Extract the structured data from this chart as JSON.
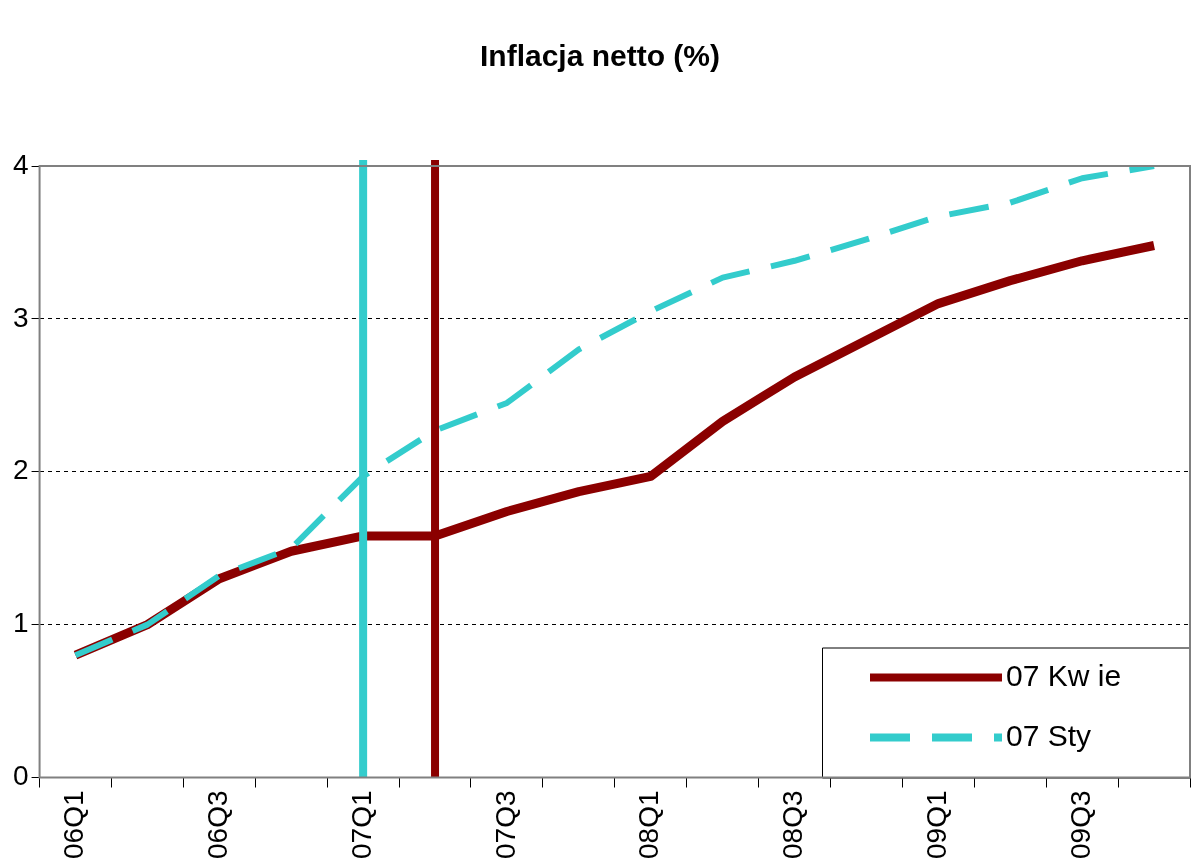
{
  "chart_data": {
    "type": "line",
    "title": "Inflacja netto (%)",
    "categories": [
      "06Q1",
      null,
      "06Q3",
      null,
      "07Q1",
      null,
      "07Q3",
      null,
      "08Q1",
      null,
      "08Q3",
      null,
      "09Q1",
      null,
      "09Q3",
      null
    ],
    "series": [
      {
        "name": "07 Kw ie",
        "color": "#8b0000",
        "line_style": "solid",
        "values": [
          0.8,
          1.0,
          1.3,
          1.48,
          1.58,
          1.58,
          1.74,
          1.87,
          1.97,
          2.33,
          2.62,
          2.86,
          3.1,
          3.25,
          3.38,
          3.48
        ]
      },
      {
        "name": "07 Sty",
        "color": "#33cccc",
        "line_style": "dashed",
        "values": [
          0.8,
          1.0,
          1.32,
          1.5,
          1.97,
          2.27,
          2.45,
          2.8,
          3.05,
          3.27,
          3.38,
          3.52,
          3.67,
          3.76,
          3.92,
          4.0
        ]
      }
    ],
    "ref_lines": [
      {
        "axis": "x",
        "value": "07Q1",
        "color": "#33cccc"
      }
    ],
    "ylim": [
      0,
      4
    ],
    "yticks": [
      0,
      1,
      2,
      3,
      4
    ],
    "grid": "y",
    "legend": "bottom right",
    "marker": "none"
  }
}
